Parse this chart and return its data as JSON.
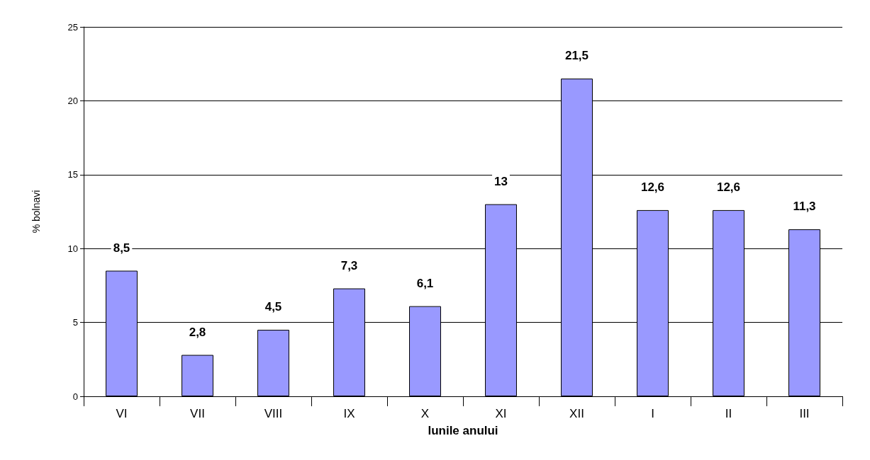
{
  "chart_data": {
    "type": "bar",
    "xlabel": "lunile anului",
    "ylabel": "% bolnavi",
    "categories": [
      "VI",
      "VII",
      "VIII",
      "IX",
      "X",
      "XI",
      "XII",
      "I",
      "II",
      "III"
    ],
    "values": [
      8.5,
      2.8,
      4.5,
      7.3,
      6.1,
      13,
      21.5,
      12.6,
      12.6,
      11.3
    ],
    "value_labels": [
      "8,5",
      "2,8",
      "4,5",
      "7,3",
      "6,1",
      "13",
      "21,5",
      "12,6",
      "12,6",
      "11,3"
    ],
    "color": "#9999ff",
    "ylim": [
      0,
      25
    ],
    "yticks": [
      0,
      5,
      10,
      15,
      20,
      25
    ],
    "grid": "y"
  }
}
